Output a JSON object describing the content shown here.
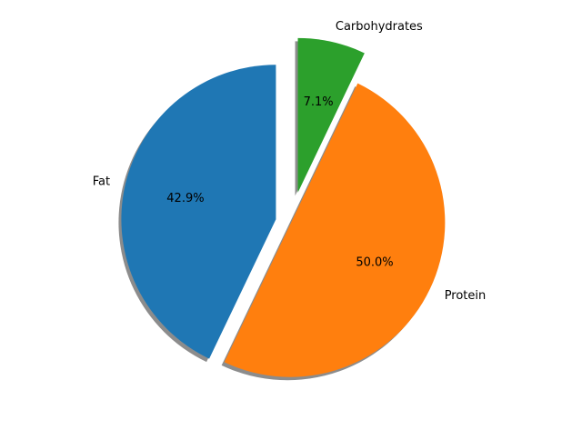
{
  "chart_data": {
    "type": "pie",
    "title": "",
    "categories": [
      "Fat",
      "Protein",
      "Carbohydrates"
    ],
    "values": [
      42.9,
      50.0,
      7.1
    ],
    "percent_labels": [
      "42.9%",
      "50.0%",
      "7.1%"
    ],
    "colors": [
      "#1f77b4",
      "#ff7f0e",
      "#2ca02c"
    ],
    "explode": [
      0.1,
      0.0,
      0.2
    ],
    "start_angle_deg": 90,
    "direction": "counterclockwise",
    "shadow": true,
    "legend": "none"
  }
}
